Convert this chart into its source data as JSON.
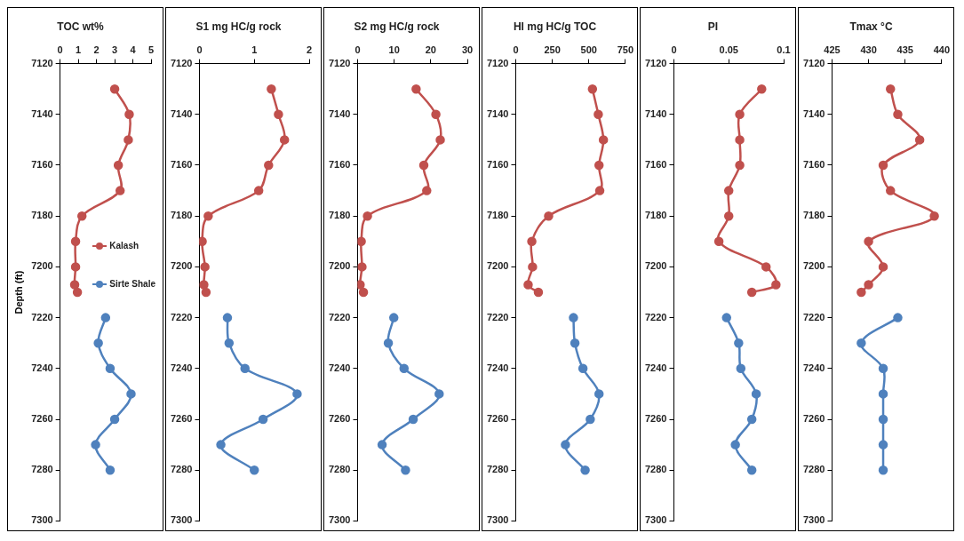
{
  "chart_data": [
    {
      "type": "line",
      "title": "TOC wt%",
      "ylabel": "Depth (ft)",
      "xlim": [
        0,
        5
      ],
      "xticks": [
        0,
        1,
        2,
        3,
        4,
        5
      ],
      "ylim": [
        7300,
        7120
      ],
      "yticks": [
        7120,
        7140,
        7160,
        7180,
        7200,
        7220,
        7240,
        7260,
        7280,
        7300
      ],
      "marker": "circle",
      "grid": false,
      "legend": "right",
      "series": [
        {
          "name": "Kalash",
          "color": "#c0504d",
          "x": [
            3.0,
            3.8,
            3.75,
            3.2,
            3.3,
            1.2,
            0.85,
            0.85,
            0.8,
            0.95
          ],
          "values": [
            7130,
            7140,
            7150,
            7160,
            7170,
            7180,
            7190,
            7200,
            7207,
            7210
          ]
        },
        {
          "name": "Sirte Shale",
          "color": "#4f81bd",
          "x": [
            2.5,
            2.1,
            2.75,
            3.9,
            3.0,
            1.95,
            2.75
          ],
          "values": [
            7220,
            7230,
            7240,
            7250,
            7260,
            7270,
            7280
          ]
        }
      ]
    },
    {
      "type": "line",
      "title": "S1 mg HC/g rock",
      "xlim": [
        0,
        2
      ],
      "xticks": [
        0,
        1,
        2
      ],
      "ylim": [
        7300,
        7120
      ],
      "yticks": [
        7120,
        7140,
        7160,
        7180,
        7200,
        7220,
        7240,
        7260,
        7280,
        7300
      ],
      "marker": "circle",
      "grid": false,
      "series": [
        {
          "color": "#c0504d",
          "x": [
            1.31,
            1.44,
            1.55,
            1.26,
            1.08,
            0.16,
            0.05,
            0.1,
            0.08,
            0.12
          ],
          "values": [
            7130,
            7140,
            7150,
            7160,
            7170,
            7180,
            7190,
            7200,
            7207,
            7210
          ]
        },
        {
          "color": "#4f81bd",
          "x": [
            0.51,
            0.54,
            0.83,
            1.78,
            1.16,
            0.39,
            1.0
          ],
          "values": [
            7220,
            7230,
            7240,
            7250,
            7260,
            7270,
            7280
          ]
        }
      ]
    },
    {
      "type": "line",
      "title": "S2 mg HC/g rock",
      "xlim": [
        0,
        30
      ],
      "xticks": [
        0,
        10,
        20,
        30
      ],
      "ylim": [
        7300,
        7120
      ],
      "yticks": [
        7120,
        7140,
        7160,
        7180,
        7200,
        7220,
        7240,
        7260,
        7280,
        7300
      ],
      "marker": "circle",
      "grid": false,
      "series": [
        {
          "color": "#c0504d",
          "x": [
            16.0,
            21.4,
            22.6,
            18.1,
            18.9,
            2.7,
            1.0,
            1.2,
            0.7,
            1.6
          ],
          "values": [
            7130,
            7140,
            7150,
            7160,
            7170,
            7180,
            7190,
            7200,
            7207,
            7210
          ]
        },
        {
          "color": "#4f81bd",
          "x": [
            9.9,
            8.4,
            12.7,
            22.3,
            15.2,
            6.7,
            13.1
          ],
          "values": [
            7220,
            7230,
            7240,
            7250,
            7260,
            7270,
            7280
          ]
        }
      ]
    },
    {
      "type": "line",
      "title": "HI mg HC/g TOC",
      "xlim": [
        0,
        750
      ],
      "xticks": [
        0,
        250,
        500,
        750
      ],
      "ylim": [
        7300,
        7120
      ],
      "yticks": [
        7120,
        7140,
        7160,
        7180,
        7200,
        7220,
        7240,
        7260,
        7280,
        7300
      ],
      "marker": "circle",
      "grid": false,
      "series": [
        {
          "color": "#c0504d",
          "x": [
            525,
            565,
            600,
            570,
            575,
            225,
            110,
            115,
            85,
            155
          ],
          "values": [
            7130,
            7140,
            7150,
            7160,
            7170,
            7180,
            7190,
            7200,
            7207,
            7210
          ]
        },
        {
          "color": "#4f81bd",
          "x": [
            395,
            405,
            460,
            570,
            510,
            340,
            475
          ],
          "values": [
            7220,
            7230,
            7240,
            7250,
            7260,
            7270,
            7280
          ]
        }
      ]
    },
    {
      "type": "line",
      "title": "PI",
      "xlim": [
        0,
        0.1
      ],
      "xticks": [
        0,
        0.05,
        0.1
      ],
      "ylim": [
        7300,
        7120
      ],
      "yticks": [
        7120,
        7140,
        7160,
        7180,
        7200,
        7220,
        7240,
        7260,
        7280,
        7300
      ],
      "marker": "circle",
      "grid": false,
      "series": [
        {
          "color": "#c0504d",
          "x": [
            0.08,
            0.06,
            0.06,
            0.06,
            0.05,
            0.05,
            0.041,
            0.084,
            0.093,
            0.071
          ],
          "values": [
            7130,
            7140,
            7150,
            7160,
            7170,
            7180,
            7190,
            7200,
            7207,
            7210
          ]
        },
        {
          "color": "#4f81bd",
          "x": [
            0.048,
            0.059,
            0.061,
            0.075,
            0.071,
            0.056,
            0.071
          ],
          "values": [
            7220,
            7230,
            7240,
            7250,
            7260,
            7270,
            7280
          ]
        }
      ]
    },
    {
      "type": "line",
      "title": "Tmax °C",
      "xlim": [
        425,
        440
      ],
      "xticks": [
        425,
        430,
        435,
        440
      ],
      "ylim": [
        7300,
        7120
      ],
      "yticks": [
        7120,
        7140,
        7160,
        7180,
        7200,
        7220,
        7240,
        7260,
        7280,
        7300
      ],
      "marker": "circle",
      "grid": false,
      "series": [
        {
          "color": "#c0504d",
          "x": [
            433,
            434,
            437,
            432,
            433,
            439,
            430,
            432,
            430,
            429
          ],
          "values": [
            7130,
            7140,
            7150,
            7160,
            7170,
            7180,
            7190,
            7200,
            7207,
            7210
          ]
        },
        {
          "color": "#4f81bd",
          "x": [
            434,
            429,
            432,
            432,
            432,
            432,
            432
          ],
          "values": [
            7220,
            7230,
            7240,
            7250,
            7260,
            7270,
            7280
          ]
        }
      ]
    }
  ]
}
